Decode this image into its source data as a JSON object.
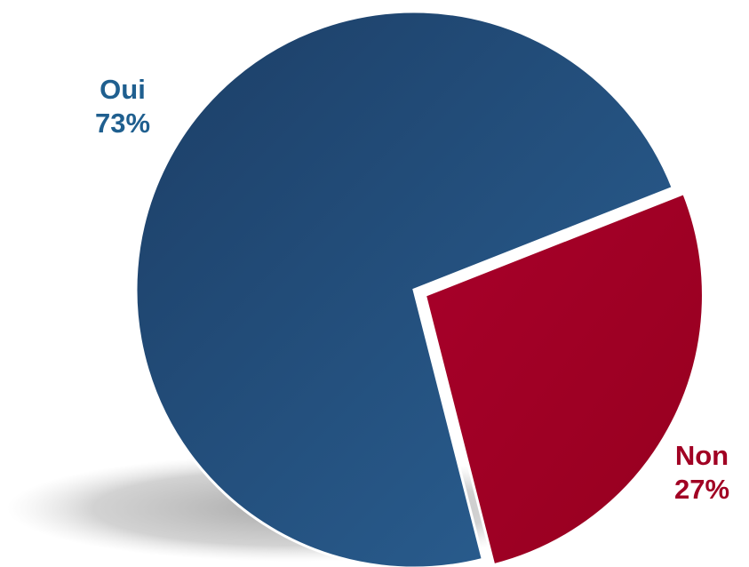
{
  "chart_data": {
    "type": "pie",
    "slices": [
      {
        "label": "Oui",
        "value": 73,
        "percent_label": "73%",
        "color": "#23507f",
        "label_color": "#1f5f8f",
        "exploded": false
      },
      {
        "label": "Non",
        "value": 27,
        "percent_label": "27%",
        "color": "#a10023",
        "label_color": "#a10023",
        "exploded": true
      }
    ]
  }
}
